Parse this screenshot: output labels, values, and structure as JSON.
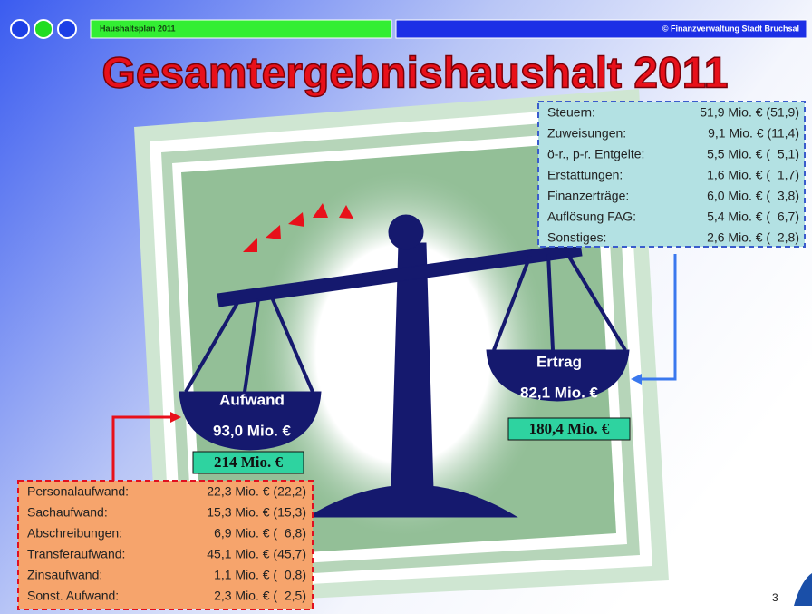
{
  "header": {
    "left_label": "Haushaltsplan 2011",
    "right_label": "© Finanzverwaltung Stadt Bruchsal"
  },
  "title": "Gesamtergebnishaushalt 2011",
  "income": {
    "rows": [
      [
        "Steuern:",
        "51,9 Mio. € (51,9)"
      ],
      [
        "Zuweisungen:",
        "9,1 Mio. € (11,4)"
      ],
      [
        "ö-r., p-r. Entgelte:",
        "5,5 Mio. € (  5,1)"
      ],
      [
        "Erstattungen:",
        "1,6 Mio. € (  1,7)"
      ],
      [
        "Finanzerträge:",
        "6,0 Mio. € (  3,8)"
      ],
      [
        "Auflösung FAG:",
        "5,4 Mio. € (  6,7)"
      ],
      [
        "Sonstiges:",
        "2,6 Mio. € (  2,8)"
      ]
    ]
  },
  "expense": {
    "rows": [
      [
        "Personalaufwand:",
        "22,3 Mio. € (22,2)"
      ],
      [
        "Sachaufwand:",
        "15,3 Mio. € (15,3)"
      ],
      [
        "Abschreibungen:",
        "6,9 Mio. € (  6,8)"
      ],
      [
        "Transferaufwand:",
        "45,1 Mio. € (45,7)"
      ],
      [
        "Zinsaufwand:",
        "1,1 Mio. € (  0,8)"
      ],
      [
        "Sonst. Aufwand:",
        "2,3 Mio. € (  2,5)"
      ]
    ]
  },
  "left_pan": {
    "label": "Aufwand",
    "value": "93,0 Mio. €",
    "total": "214 Mio. €"
  },
  "right_pan": {
    "label": "Ertrag",
    "value": "82,1 Mio. €",
    "total": "180,4 Mio. €"
  },
  "page_number": "3"
}
